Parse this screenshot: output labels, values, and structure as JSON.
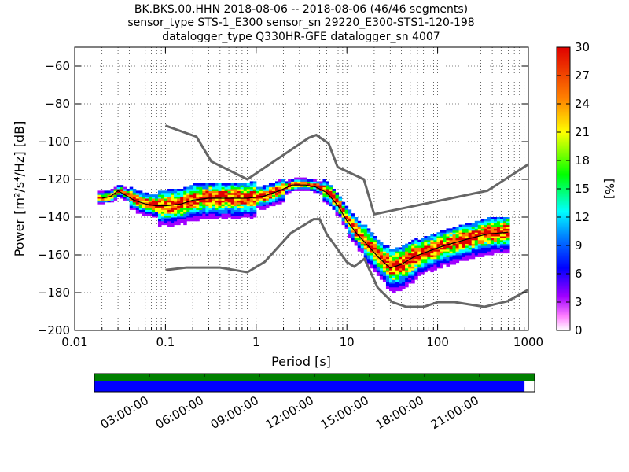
{
  "title_lines": [
    "BK.BKS.00.HHN   2018-08-06 -- 2018-08-06  (46/46 segments)",
    "sensor_type STS-1_E300 sensor_sn 29220_E300-STS1-120-198",
    "datalogger_type Q330HR-GFE datalogger_sn 4007"
  ],
  "chart_data": {
    "type": "heatmap",
    "xlabel": "Period [s]",
    "ylabel": "Power [m²/s⁴/Hz] [dB]",
    "x_scale": "log",
    "xlim": [
      0.01,
      1000
    ],
    "ylim": [
      -200,
      -50
    ],
    "x_ticks": [
      0.01,
      0.1,
      1,
      10,
      100,
      1000
    ],
    "x_tick_labels": [
      "0.01",
      "0.1",
      "1",
      "10",
      "100",
      "1000"
    ],
    "y_ticks": [
      -200,
      -180,
      -160,
      -140,
      -120,
      -100,
      -80,
      -60
    ],
    "y_tick_labels": [
      "−200",
      "−180",
      "−160",
      "−140",
      "−120",
      "−100",
      "−80",
      "−60"
    ],
    "grid": true,
    "noise_model_high": {
      "x": [
        0.1,
        0.22,
        0.32,
        0.8,
        3.8,
        4.6,
        6.3,
        7.9,
        15.4,
        20,
        354.8,
        1000
      ],
      "y": [
        -91.5,
        -97.4,
        -110.5,
        -120,
        -98,
        -96.5,
        -101,
        -113.5,
        -120,
        -138.5,
        -126,
        -112
      ]
    },
    "noise_model_low": {
      "x": [
        0.1,
        0.17,
        0.4,
        0.8,
        1.24,
        2.4,
        4.3,
        5,
        6,
        10,
        12,
        15.6,
        21.9,
        31.6,
        45,
        70,
        101,
        154,
        328,
        600,
        1000
      ],
      "y": [
        -168,
        -166.7,
        -166.7,
        -169.2,
        -163.7,
        -148.6,
        -141.1,
        -141.1,
        -149,
        -163.8,
        -166.2,
        -162.1,
        -177.5,
        -185,
        -187.5,
        -187.5,
        -185,
        -185,
        -187.5,
        -184.4,
        -178.4
      ]
    },
    "mean_psd": {
      "x": [
        0.02,
        0.025,
        0.03,
        0.035,
        0.045,
        0.06,
        0.08,
        0.1,
        0.15,
        0.2,
        0.3,
        0.5,
        0.8,
        1.2,
        1.8,
        2.5,
        3.5,
        4.5,
        6,
        8,
        10,
        13,
        17,
        22,
        30,
        40,
        55,
        80,
        120,
        200,
        350,
        600
      ],
      "y": [
        -130,
        -129,
        -126,
        -128,
        -131,
        -133,
        -134,
        -134,
        -133,
        -131,
        -130,
        -130,
        -130,
        -129,
        -126,
        -123,
        -123,
        -124,
        -127,
        -134,
        -142,
        -149,
        -155,
        -161,
        -167,
        -165,
        -161,
        -158,
        -155,
        -152,
        -149,
        -148
      ]
    },
    "colorbar": {
      "label": "[%]",
      "min": 0,
      "max": 30,
      "ticks": [
        0,
        3,
        6,
        9,
        12,
        15,
        18,
        21,
        24,
        27,
        30
      ],
      "tick_labels": [
        "0",
        "3",
        "6",
        "9",
        "12",
        "15",
        "18",
        "21",
        "24",
        "27",
        "30"
      ]
    }
  },
  "time_axis": {
    "tick_labels": [
      "03:00:00",
      "06:00:00",
      "09:00:00",
      "12:00:00",
      "15:00:00",
      "18:00:00",
      "21:00:00"
    ],
    "coverage_fraction": 0.977
  }
}
